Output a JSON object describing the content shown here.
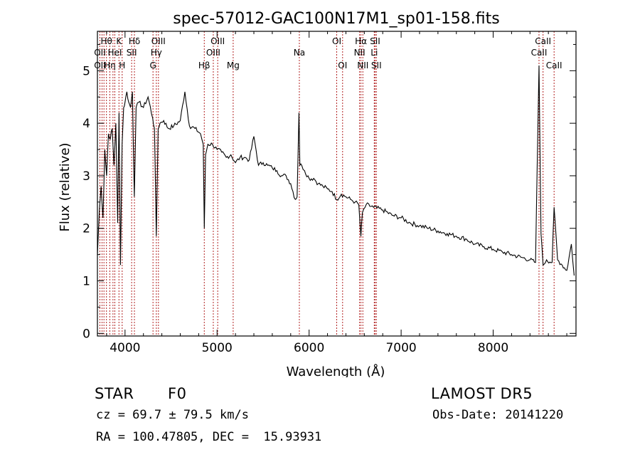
{
  "chart_data": {
    "type": "line",
    "title": "spec-57012-GAC100N17M1_sp01-158.fits",
    "xlabel": "Wavelength (Å)",
    "ylabel": "Flux (relative)",
    "xlim": [
      3700,
      8900
    ],
    "ylim": [
      -0.05,
      5.75
    ],
    "xticks": [
      4000,
      5000,
      6000,
      7000,
      8000
    ],
    "yticks": [
      0,
      1,
      2,
      3,
      4,
      5
    ],
    "grid": false,
    "line_color": "#000000",
    "marker_color": "#b22222",
    "series": [
      {
        "x": [
          3700,
          3720,
          3740,
          3760,
          3780,
          3800,
          3820,
          3840,
          3860,
          3880,
          3900,
          3920,
          3935,
          3950,
          3968,
          3985,
          4000,
          4020,
          4040,
          4060,
          4080,
          4101,
          4120,
          4150,
          4200,
          4250,
          4300,
          4320,
          4340,
          4360,
          4380,
          4420,
          4470,
          4530,
          4600,
          4650,
          4700,
          4760,
          4820,
          4850,
          4861,
          4875,
          4900,
          4950,
          5000,
          5050,
          5100,
          5150,
          5200,
          5250,
          5300,
          5350,
          5400,
          5450,
          5500,
          5550,
          5600,
          5650,
          5700,
          5750,
          5800,
          5850,
          5870,
          5890,
          5900,
          5920,
          5950,
          6000,
          6050,
          6100,
          6150,
          6200,
          6250,
          6300,
          6350,
          6400,
          6450,
          6500,
          6540,
          6563,
          6580,
          6620,
          6700,
          6800,
          6900,
          7000,
          7100,
          7200,
          7300,
          7400,
          7500,
          7600,
          7700,
          7800,
          7900,
          8000,
          8100,
          8200,
          8300,
          8400,
          8460,
          8498,
          8520,
          8542,
          8580,
          8640,
          8662,
          8700,
          8750,
          8800,
          8850,
          8880
        ],
        "y": [
          1.5,
          2.3,
          2.8,
          2.2,
          3.5,
          3.0,
          3.8,
          3.7,
          3.9,
          3.2,
          4.0,
          2.1,
          4.2,
          1.3,
          3.6,
          4.3,
          4.4,
          4.6,
          4.4,
          4.3,
          4.6,
          2.6,
          4.3,
          4.4,
          4.3,
          4.5,
          4.1,
          3.9,
          1.85,
          3.9,
          4.0,
          4.05,
          3.9,
          3.95,
          4.05,
          4.6,
          3.95,
          3.9,
          3.8,
          3.6,
          2.0,
          3.4,
          3.6,
          3.6,
          3.5,
          3.45,
          3.35,
          3.4,
          3.25,
          3.35,
          3.35,
          3.3,
          3.75,
          3.2,
          3.25,
          3.2,
          3.15,
          3.1,
          3.0,
          3.0,
          2.85,
          2.55,
          2.6,
          4.2,
          3.2,
          3.2,
          3.1,
          2.95,
          2.95,
          2.85,
          2.8,
          2.75,
          2.7,
          2.55,
          2.65,
          2.6,
          2.55,
          2.5,
          2.45,
          1.85,
          2.3,
          2.45,
          2.4,
          2.35,
          2.25,
          2.2,
          2.1,
          2.05,
          2.0,
          1.95,
          1.9,
          1.85,
          1.8,
          1.7,
          1.65,
          1.6,
          1.55,
          1.5,
          1.45,
          1.4,
          1.35,
          5.1,
          1.9,
          1.3,
          1.4,
          1.35,
          2.4,
          1.4,
          1.3,
          1.2,
          1.7,
          1.1
        ]
      }
    ],
    "line_markers": [
      {
        "x": 3727,
        "labels": [
          {
            "text": "OII",
            "row": 2
          },
          {
            "text": "OII",
            "row": 3
          }
        ]
      },
      {
        "x": 3750,
        "labels": []
      },
      {
        "x": 3771,
        "labels": []
      },
      {
        "x": 3798,
        "labels": [
          {
            "text": "Hθ",
            "row": 1
          }
        ]
      },
      {
        "x": 3835,
        "labels": [
          {
            "text": "Hη",
            "row": 3
          }
        ]
      },
      {
        "x": 3869,
        "labels": []
      },
      {
        "x": 3889,
        "labels": [
          {
            "text": "HeI",
            "row": 2
          }
        ]
      },
      {
        "x": 3934,
        "labels": [
          {
            "text": "K",
            "row": 1
          }
        ]
      },
      {
        "x": 3969,
        "labels": [
          {
            "text": "H",
            "row": 3
          }
        ]
      },
      {
        "x": 4072,
        "labels": [
          {
            "text": "SII",
            "row": 2
          }
        ]
      },
      {
        "x": 4102,
        "labels": [
          {
            "text": "Hδ",
            "row": 1
          }
        ]
      },
      {
        "x": 4304,
        "labels": [
          {
            "text": "G",
            "row": 3
          }
        ]
      },
      {
        "x": 4340,
        "labels": [
          {
            "text": "Hγ",
            "row": 2
          }
        ]
      },
      {
        "x": 4363,
        "labels": [
          {
            "text": "OIII",
            "row": 1
          }
        ]
      },
      {
        "x": 4861,
        "labels": [
          {
            "text": "Hβ",
            "row": 3
          }
        ]
      },
      {
        "x": 4959,
        "labels": [
          {
            "text": "OIII",
            "row": 2
          }
        ]
      },
      {
        "x": 5007,
        "labels": [
          {
            "text": "OIII",
            "row": 1
          }
        ]
      },
      {
        "x": 5175,
        "labels": [
          {
            "text": "Mg",
            "row": 3
          }
        ]
      },
      {
        "x": 5894,
        "labels": [
          {
            "text": "Na",
            "row": 2
          }
        ]
      },
      {
        "x": 6300,
        "labels": [
          {
            "text": "OI",
            "row": 1
          }
        ]
      },
      {
        "x": 6364,
        "labels": [
          {
            "text": "OI",
            "row": 3
          }
        ]
      },
      {
        "x": 6548,
        "labels": [
          {
            "text": "NII",
            "row": 2
          }
        ]
      },
      {
        "x": 6563,
        "labels": [
          {
            "text": "Hα",
            "row": 1
          }
        ]
      },
      {
        "x": 6584,
        "labels": [
          {
            "text": "NII",
            "row": 3
          }
        ]
      },
      {
        "x": 6708,
        "labels": [
          {
            "text": "Li",
            "row": 2
          }
        ]
      },
      {
        "x": 6717,
        "labels": [
          {
            "text": "SII",
            "row": 1
          }
        ]
      },
      {
        "x": 6731,
        "labels": [
          {
            "text": "SII",
            "row": 3
          }
        ]
      },
      {
        "x": 8498,
        "labels": [
          {
            "text": "CaII",
            "row": 2
          }
        ]
      },
      {
        "x": 8542,
        "labels": [
          {
            "text": "CaII",
            "row": 1
          }
        ]
      },
      {
        "x": 8662,
        "labels": [
          {
            "text": "CaII",
            "row": 3
          }
        ]
      }
    ]
  },
  "info": {
    "class": "STAR",
    "subclass": "F0",
    "survey": "LAMOST DR5",
    "redshift": "cz = 69.7 ± 79.5 km/s",
    "obs_date": "Obs-Date: 20141220",
    "coords": "RA = 100.47805, DEC =  15.93931"
  }
}
